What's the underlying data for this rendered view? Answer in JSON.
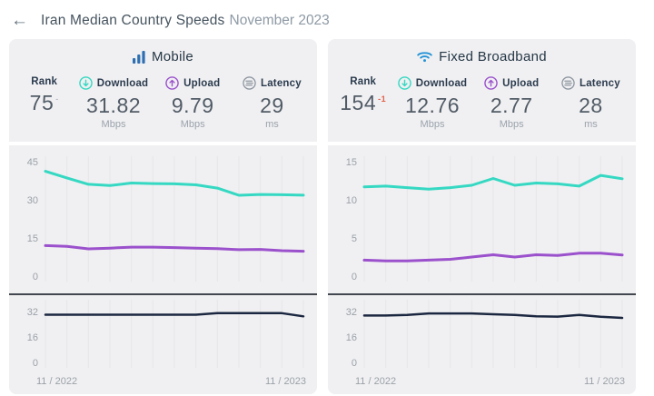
{
  "header": {
    "back_icon": "←",
    "title": "Iran Median Country Speeds",
    "subtitle": "November 2023"
  },
  "colors": {
    "download_accent": "#35d8c2",
    "upload_accent": "#9b51cc",
    "latency_line": "#1b2740",
    "mobile_icon_blue": "#2e6fb2",
    "wifi_icon_blue": "#2593d6",
    "latency_icon_gray": "#8d96a0",
    "rank_change_negative": "#e2604a",
    "rank_change_neutral": "#b9bfc6",
    "card_background": "#f0f0f2",
    "divider": "#43474f"
  },
  "cards": [
    {
      "title": "Mobile",
      "stats": {
        "rank": {
          "label": "Rank",
          "value": "75",
          "change": "-"
        },
        "download": {
          "label": "Download",
          "value": "31.82",
          "unit": "Mbps"
        },
        "upload": {
          "label": "Upload",
          "value": "9.79",
          "unit": "Mbps"
        },
        "latency": {
          "label": "Latency",
          "value": "29",
          "unit": "ms"
        }
      },
      "x_axis": {
        "start": "11 / 2022",
        "end": "11 / 2023"
      }
    },
    {
      "title": "Fixed Broadband",
      "stats": {
        "rank": {
          "label": "Rank",
          "value": "154",
          "change": "-1"
        },
        "download": {
          "label": "Download",
          "value": "12.76",
          "unit": "Mbps"
        },
        "upload": {
          "label": "Upload",
          "value": "2.77",
          "unit": "Mbps"
        },
        "latency": {
          "label": "Latency",
          "value": "28",
          "unit": "ms"
        }
      },
      "x_axis": {
        "start": "11 / 2022",
        "end": "11 / 2023"
      }
    }
  ],
  "chart_data": [
    {
      "type": "line",
      "card": "Mobile",
      "panel": "speeds",
      "x": [
        "11/2022",
        "12/2022",
        "01/2023",
        "02/2023",
        "03/2023",
        "04/2023",
        "05/2023",
        "06/2023",
        "07/2023",
        "08/2023",
        "09/2023",
        "10/2023",
        "11/2023"
      ],
      "ylim": [
        0,
        45
      ],
      "yticks": [
        45,
        30,
        15,
        0
      ],
      "grid": "vertical-monthly",
      "grid_color": "#e6e6e9",
      "tick_color": "#9aa1a8",
      "legend": "none",
      "series": [
        {
          "name": "Download (Mbps)",
          "color": "#35d8c2",
          "width": 3,
          "values": [
            41.2,
            38.6,
            36.1,
            35.6,
            36.6,
            36.4,
            36.3,
            35.9,
            34.6,
            31.8,
            32.1,
            32.0,
            31.82
          ]
        },
        {
          "name": "Upload (Mbps)",
          "color": "#9b51cc",
          "width": 3,
          "values": [
            12.0,
            11.7,
            10.7,
            11.0,
            11.4,
            11.4,
            11.2,
            11.0,
            10.8,
            10.4,
            10.5,
            10.0,
            9.79
          ]
        }
      ]
    },
    {
      "type": "line",
      "card": "Mobile",
      "panel": "latency",
      "x": [
        "11/2022",
        "12/2022",
        "01/2023",
        "02/2023",
        "03/2023",
        "04/2023",
        "05/2023",
        "06/2023",
        "07/2023",
        "08/2023",
        "09/2023",
        "10/2023",
        "11/2023"
      ],
      "ylim": [
        0,
        36
      ],
      "yticks": [
        32,
        16,
        0
      ],
      "grid": "vertical-monthly",
      "grid_color": "#e6e6e9",
      "tick_color": "#9aa1a8",
      "legend": "none",
      "series": [
        {
          "name": "Latency (ms)",
          "color": "#1b2740",
          "width": 2.5,
          "values": [
            30,
            30,
            30,
            30,
            30,
            30,
            30,
            30,
            31,
            31,
            31,
            31,
            29
          ]
        }
      ]
    },
    {
      "type": "line",
      "card": "Fixed Broadband",
      "panel": "speeds",
      "x": [
        "11/2022",
        "12/2022",
        "01/2023",
        "02/2023",
        "03/2023",
        "04/2023",
        "05/2023",
        "06/2023",
        "07/2023",
        "08/2023",
        "09/2023",
        "10/2023",
        "11/2023"
      ],
      "ylim": [
        0,
        15
      ],
      "yticks": [
        15,
        10,
        5,
        0
      ],
      "grid": "vertical-monthly",
      "grid_color": "#e6e6e9",
      "tick_color": "#9aa1a8",
      "legend": "none",
      "series": [
        {
          "name": "Download (Mbps)",
          "color": "#35d8c2",
          "width": 3,
          "values": [
            11.7,
            11.8,
            11.6,
            11.4,
            11.6,
            11.9,
            12.8,
            11.9,
            12.2,
            12.1,
            11.8,
            13.2,
            12.76
          ]
        },
        {
          "name": "Upload (Mbps)",
          "color": "#9b51cc",
          "width": 3,
          "values": [
            2.1,
            2.0,
            2.0,
            2.1,
            2.2,
            2.5,
            2.8,
            2.5,
            2.8,
            2.7,
            3.0,
            3.0,
            2.77
          ]
        }
      ]
    },
    {
      "type": "line",
      "card": "Fixed Broadband",
      "panel": "latency",
      "x": [
        "11/2022",
        "12/2022",
        "01/2023",
        "02/2023",
        "03/2023",
        "04/2023",
        "05/2023",
        "06/2023",
        "07/2023",
        "08/2023",
        "09/2023",
        "10/2023",
        "11/2023"
      ],
      "ylim": [
        0,
        36
      ],
      "yticks": [
        32,
        16,
        0
      ],
      "grid": "vertical-monthly",
      "grid_color": "#e6e6e9",
      "tick_color": "#9aa1a8",
      "legend": "none",
      "series": [
        {
          "name": "Latency (ms)",
          "color": "#1b2740",
          "width": 2.5,
          "values": [
            29.5,
            29.5,
            29.8,
            30.8,
            30.8,
            30.8,
            30.3,
            29.8,
            29.0,
            28.8,
            29.8,
            28.7,
            28
          ]
        }
      ]
    }
  ]
}
